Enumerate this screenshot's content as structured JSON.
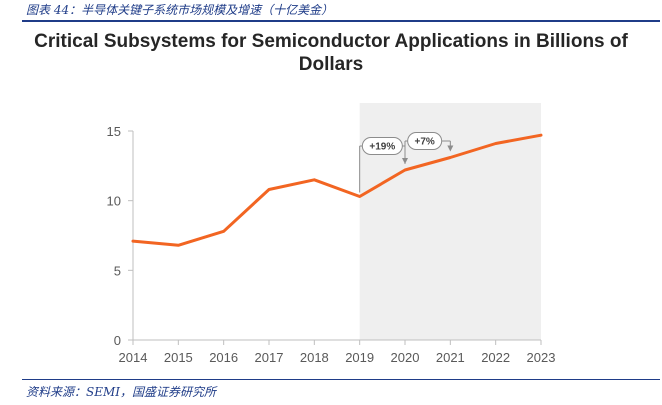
{
  "figure": {
    "caption": "图表 44：半导体关键子系统市场规模及增速（十亿美金）",
    "source": "资料来源：SEMI，国盛证券研究所"
  },
  "chart_data": {
    "type": "line",
    "title_line1": "Critical Subsystems for Semiconductor Applications in Billions of",
    "title_line2": "Dollars",
    "x": [
      2014,
      2015,
      2016,
      2017,
      2018,
      2019,
      2020,
      2021,
      2022,
      2023
    ],
    "x_tick_labels": [
      "2014",
      "2015",
      "2016",
      "2017",
      "2018",
      "2019",
      "2020",
      "2021",
      "2022",
      "2023"
    ],
    "series": [
      {
        "values": [
          7.1,
          6.8,
          7.8,
          10.8,
          11.5,
          10.3,
          12.2,
          13.1,
          14.1,
          14.7
        ]
      }
    ],
    "ylim": [
      0,
      15
    ],
    "y_ticks": [
      0,
      5,
      10,
      15
    ],
    "y_tick_labels": [
      "0",
      "5",
      "10",
      "15"
    ],
    "forecast_shade": {
      "from": 2019,
      "to": 2023
    },
    "annotations": [
      {
        "label": "+19%",
        "from": 2019,
        "to": 2020
      },
      {
        "label": "+7%",
        "from": 2020,
        "to": 2021
      }
    ],
    "line_color": "#f26522",
    "shade_color": "#efefef",
    "grid": false
  }
}
